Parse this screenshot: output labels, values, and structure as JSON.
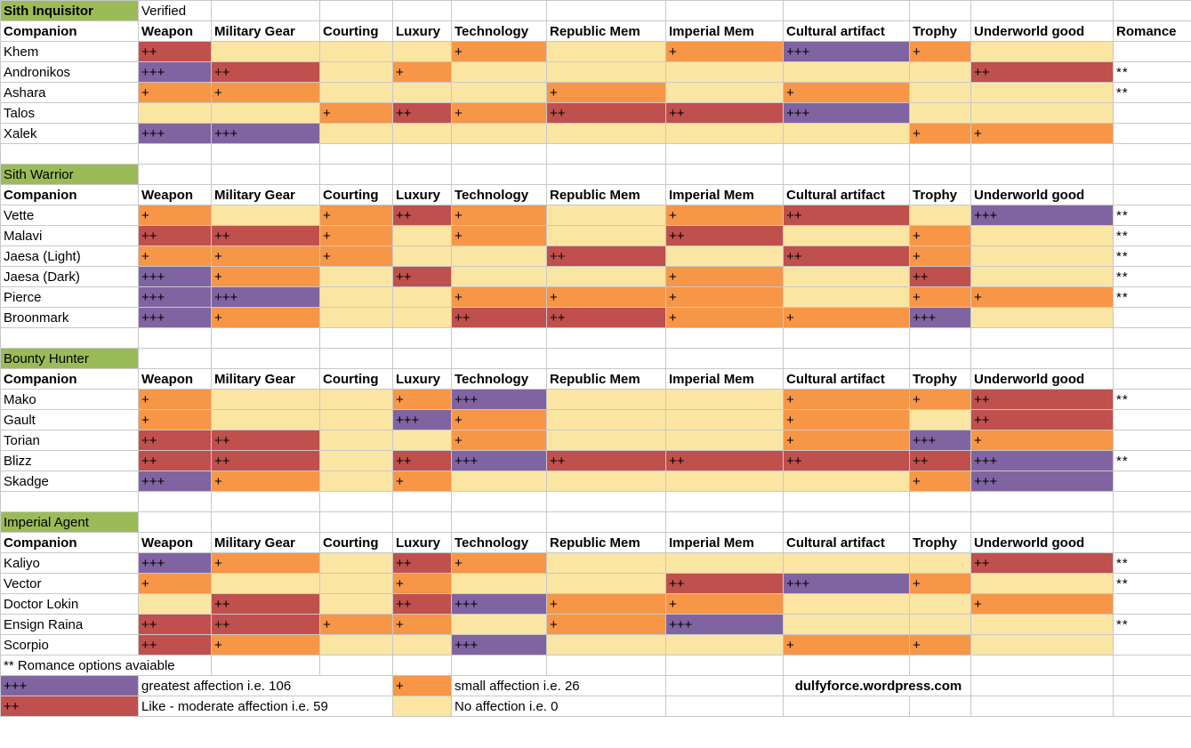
{
  "verified_label": "Verified",
  "headers": [
    "Companion",
    "Weapon",
    "Military Gear",
    "Courting",
    "Luxury",
    "Technology",
    "Republic Mem",
    "Imperial Mem",
    "Cultural artifact",
    "Trophy",
    "Underworld good",
    "Romance"
  ],
  "colors": {
    "greatest": "#8064a2",
    "moderate": "#c0504d",
    "small": "#f79646",
    "none": "#fbe5a2",
    "section": "#9bbb59"
  },
  "sections": [
    {
      "name": "Sith Inquisitor",
      "show_romance_header": true,
      "companions": [
        {
          "name": "Khem",
          "romance": "",
          "levels": [
            2,
            0,
            0,
            0,
            1,
            0,
            1,
            3,
            1,
            0
          ]
        },
        {
          "name": "Andronikos",
          "romance": "**",
          "levels": [
            3,
            2,
            0,
            1,
            0,
            0,
            0,
            0,
            0,
            2
          ]
        },
        {
          "name": "Ashara",
          "romance": "**",
          "levels": [
            1,
            1,
            0,
            0,
            0,
            1,
            0,
            1,
            0,
            0
          ]
        },
        {
          "name": "Talos",
          "romance": "",
          "levels": [
            0,
            0,
            1,
            2,
            1,
            2,
            2,
            3,
            0,
            0
          ]
        },
        {
          "name": "Xalek",
          "romance": "",
          "levels": [
            3,
            3,
            0,
            0,
            0,
            0,
            0,
            0,
            1,
            1
          ]
        }
      ]
    },
    {
      "name": "Sith Warrior",
      "show_romance_header": false,
      "companions": [
        {
          "name": "Vette",
          "romance": "**",
          "levels": [
            1,
            0,
            1,
            2,
            1,
            0,
            1,
            2,
            0,
            3
          ]
        },
        {
          "name": "Malavi",
          "romance": "**",
          "levels": [
            2,
            2,
            1,
            0,
            1,
            0,
            2,
            0,
            1,
            0
          ]
        },
        {
          "name": "Jaesa (Light)",
          "romance": "**",
          "levels": [
            1,
            1,
            1,
            0,
            0,
            2,
            0,
            2,
            1,
            0
          ]
        },
        {
          "name": "Jaesa (Dark)",
          "romance": "**",
          "levels": [
            3,
            1,
            0,
            2,
            0,
            0,
            1,
            0,
            2,
            0
          ]
        },
        {
          "name": "Pierce",
          "romance": "**",
          "levels": [
            3,
            3,
            0,
            0,
            1,
            1,
            1,
            0,
            1,
            1
          ]
        },
        {
          "name": "Broonmark",
          "romance": "",
          "levels": [
            3,
            1,
            0,
            0,
            2,
            2,
            1,
            1,
            3,
            0
          ]
        }
      ]
    },
    {
      "name": "Bounty Hunter",
      "show_romance_header": false,
      "companions": [
        {
          "name": "Mako",
          "romance": "**",
          "levels": [
            1,
            0,
            0,
            1,
            3,
            0,
            0,
            1,
            1,
            2
          ]
        },
        {
          "name": "Gault",
          "romance": "",
          "levels": [
            1,
            0,
            0,
            3,
            1,
            0,
            0,
            1,
            0,
            2
          ]
        },
        {
          "name": "Torian",
          "romance": "",
          "levels": [
            2,
            2,
            0,
            0,
            1,
            0,
            0,
            1,
            3,
            1
          ]
        },
        {
          "name": "Blizz",
          "romance": "**",
          "levels": [
            2,
            2,
            0,
            2,
            3,
            2,
            2,
            2,
            2,
            3
          ]
        },
        {
          "name": "Skadge",
          "romance": "",
          "levels": [
            3,
            1,
            0,
            1,
            0,
            0,
            0,
            0,
            1,
            3
          ]
        }
      ]
    },
    {
      "name": "Imperial Agent",
      "show_romance_header": false,
      "companions": [
        {
          "name": "Kaliyo",
          "romance": "**",
          "levels": [
            3,
            1,
            0,
            2,
            1,
            0,
            0,
            0,
            0,
            2
          ]
        },
        {
          "name": "Vector",
          "romance": "**",
          "levels": [
            1,
            0,
            0,
            1,
            0,
            0,
            2,
            3,
            1,
            0
          ]
        },
        {
          "name": "Doctor Lokin",
          "romance": "",
          "levels": [
            0,
            2,
            0,
            2,
            3,
            1,
            1,
            0,
            0,
            1
          ]
        },
        {
          "name": "Ensign Raina",
          "romance": "**",
          "levels": [
            2,
            2,
            1,
            1,
            0,
            1,
            3,
            0,
            0,
            0
          ]
        },
        {
          "name": "Scorpio",
          "romance": "",
          "levels": [
            2,
            1,
            0,
            0,
            3,
            0,
            0,
            1,
            1,
            0
          ]
        }
      ]
    }
  ],
  "level_marks": [
    "",
    "+",
    "++",
    "+++"
  ],
  "footnote": "** Romance options avaiable",
  "legend": {
    "greatest": {
      "mark": "+++",
      "text": "greatest affection i.e. 106"
    },
    "moderate": {
      "mark": "++",
      "text": "Like - moderate affection i.e. 59"
    },
    "small": {
      "mark": "+",
      "text": "small affection i.e. 26"
    },
    "none": {
      "mark": "",
      "text": "No affection i.e. 0"
    }
  },
  "site_credit": "dulfyforce.wordpress.com"
}
